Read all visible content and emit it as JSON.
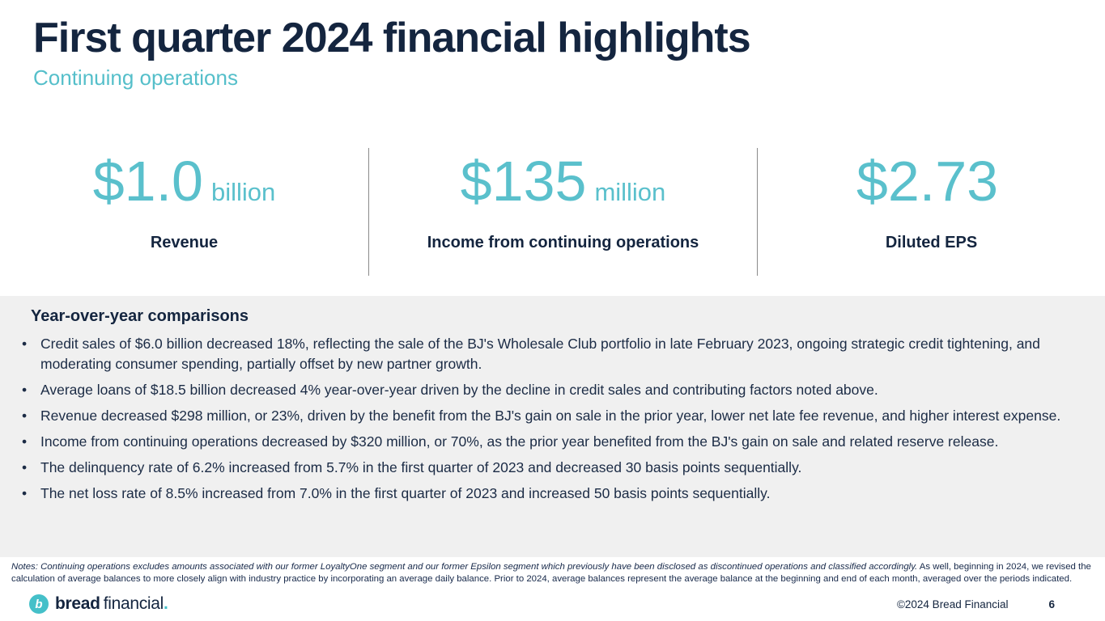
{
  "header": {
    "title": "First quarter 2024 financial highlights",
    "subtitle": "Continuing operations"
  },
  "metrics": [
    {
      "value": "$1.0",
      "unit": "billion",
      "label": "Revenue"
    },
    {
      "value": "$135",
      "unit": "million",
      "label": "Income from continuing operations"
    },
    {
      "value": "$2.73",
      "unit": "",
      "label": "Diluted EPS"
    }
  ],
  "comparisons": {
    "heading": "Year-over-year comparisons",
    "bullets": [
      "Credit sales of $6.0 billion decreased 18%, reflecting the sale of the BJ's Wholesale Club portfolio in late February 2023, ongoing strategic credit tightening, and moderating consumer spending, partially offset by new partner growth.",
      "Average loans of $18.5 billion decreased 4% year-over-year driven by the decline in credit sales and contributing factors noted above.",
      "Revenue decreased $298 million, or 23%, driven by the benefit from the BJ's gain on sale in the prior year, lower net late fee revenue, and higher interest expense.",
      "Income from continuing operations decreased by $320 million, or 70%, as the prior year benefited from the BJ's gain on sale and related reserve release.",
      "The delinquency rate of 6.2% increased from 5.7% in the first quarter of 2023 and decreased 30 basis points sequentially.",
      "The net loss rate of 8.5% increased from 7.0% in the first quarter of 2023 and increased 50 basis points sequentially."
    ]
  },
  "notes": {
    "italic": "Notes: Continuing operations excludes amounts associated with our former LoyaltyOne segment and our former Epsilon segment which previously have been disclosed as discontinued operations and classified accordingly.",
    "regular": "As well, beginning in 2024, we revised the calculation of average balances to more closely align with industry practice by incorporating an average daily balance. Prior to 2024, average balances represent the average balance at the beginning and end of each month, averaged over the periods indicated."
  },
  "footer": {
    "logo_mark": "b",
    "logo_bold": "bread",
    "logo_regular": "financial",
    "logo_period": ".",
    "copyright": "©2024 Bread Financial",
    "page_number": "6"
  },
  "colors": {
    "navy": "#14253f",
    "teal": "#5ac0cc",
    "logo_teal": "#45c0c9",
    "band_gray": "#f0f0f0"
  }
}
